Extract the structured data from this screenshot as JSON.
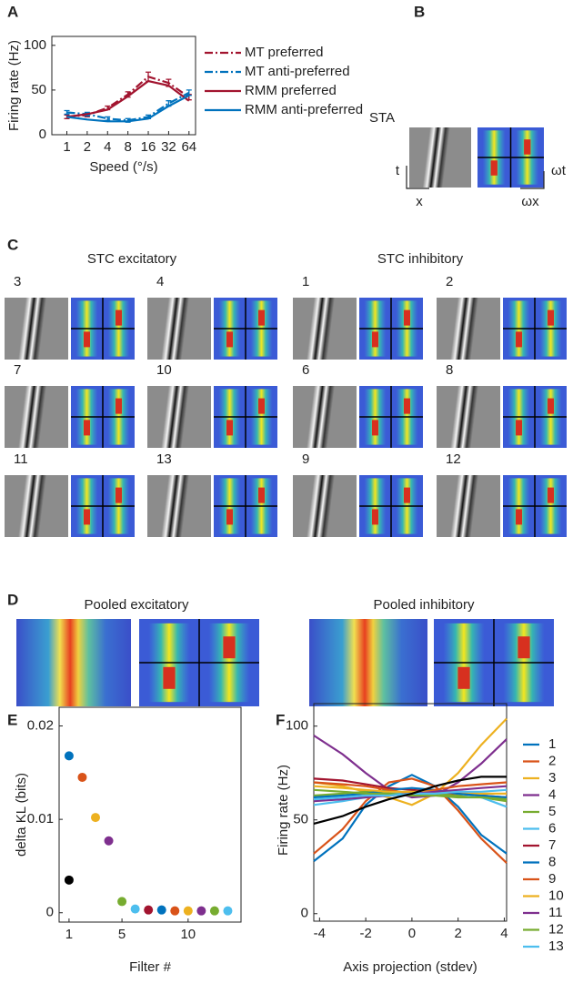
{
  "panel_labels": [
    "A",
    "B",
    "C",
    "D",
    "E",
    "F"
  ],
  "sta": {
    "title": "STA",
    "t": "t",
    "x": "x",
    "wt": "ωt",
    "wx": "ωx"
  },
  "stc": {
    "excitatory": "STC excitatory",
    "inhibitory": "STC inhibitory",
    "filters": [
      [
        "3",
        "4",
        "1",
        "2"
      ],
      [
        "7",
        "10",
        "6",
        "8"
      ],
      [
        "11",
        "13",
        "9",
        "12"
      ]
    ]
  },
  "pooled": {
    "excitatory": "Pooled excitatory",
    "inhibitory": "Pooled inhibitory"
  },
  "chart_data": [
    {
      "type": "line",
      "x": [
        1,
        2,
        4,
        8,
        16,
        32,
        64
      ],
      "log_x": true,
      "xlim": [
        0.6,
        80
      ],
      "xticks": [
        1,
        2,
        4,
        8,
        16,
        32,
        64
      ],
      "ylim": [
        0,
        110
      ],
      "yticks": [
        0,
        50,
        100
      ],
      "xlabel": "Speed (°/s)",
      "ylabel": "Firing rate (Hz)",
      "legend": "outside right",
      "series": [
        {
          "name": "MT preferred",
          "color": "#a2142f",
          "dash": "dashdot",
          "values": [
            20,
            22,
            30,
            45,
            65,
            58,
            42
          ],
          "errors": [
            2,
            2,
            2,
            3,
            5,
            4,
            3
          ]
        },
        {
          "name": "MT anti-preferred",
          "color": "#0072bd",
          "dash": "dashdot",
          "values": [
            25,
            23,
            18,
            16,
            20,
            35,
            47
          ],
          "errors": [
            2,
            2,
            2,
            2,
            2,
            3,
            3
          ]
        },
        {
          "name": "RMM preferred",
          "color": "#a2142f",
          "dash": "solid",
          "values": [
            20,
            23,
            28,
            43,
            60,
            55,
            38
          ]
        },
        {
          "name": "RMM anti-preferred",
          "color": "#0072bd",
          "dash": "solid",
          "values": [
            20,
            17,
            15,
            15,
            18,
            32,
            44
          ]
        }
      ]
    },
    {
      "type": "scatter",
      "xlim": [
        0.25,
        14
      ],
      "ylim": [
        -0.001,
        0.022
      ],
      "xticks": [
        1,
        5,
        10
      ],
      "yticks": [
        0,
        0.01,
        0.02
      ],
      "xlabel": "Filter #",
      "ylabel": "delta KL (bits)",
      "series": [
        {
          "color": "#000000",
          "x": [
            1
          ],
          "values": [
            0.0035
          ]
        },
        {
          "colors": [
            "#0072bd",
            "#d95319",
            "#edb120",
            "#7e2f8e",
            "#77ac30",
            "#4dbeee",
            "#a2142f",
            "#0072bd",
            "#d95319",
            "#edb120",
            "#7e2f8e",
            "#77ac30",
            "#4dbeee"
          ],
          "x": [
            1,
            2,
            3,
            4,
            5,
            6,
            7,
            8,
            9,
            10,
            11,
            12,
            13
          ],
          "values": [
            0.0168,
            0.0145,
            0.0102,
            0.0077,
            0.0012,
            0.0004,
            0.0003,
            0.0003,
            0.0002,
            0.0002,
            0.0002,
            0.0002,
            0.0002
          ]
        }
      ]
    },
    {
      "type": "line",
      "x": [
        -4.25,
        -3,
        -2,
        -1,
        0,
        1,
        2,
        3,
        4.1
      ],
      "xlim": [
        -4.25,
        4.1
      ],
      "xticks": [
        -4,
        -2,
        0,
        2,
        4
      ],
      "ylim": [
        -4,
        112
      ],
      "yticks": [
        0,
        50,
        100
      ],
      "xlabel": "Axis projection (stdev)",
      "ylabel": "Firing rate (Hz)",
      "legend": "outside right",
      "series": [
        {
          "name": "1",
          "color": "#0072bd",
          "values": [
            28,
            40,
            58,
            68,
            74,
            68,
            57,
            42,
            32
          ]
        },
        {
          "name": "2",
          "color": "#d95319",
          "values": [
            32,
            45,
            60,
            70,
            72,
            68,
            55,
            40,
            27
          ]
        },
        {
          "name": "3",
          "color": "#edb120",
          "values": [
            70,
            68,
            65,
            62,
            58,
            64,
            75,
            90,
            104
          ]
        },
        {
          "name": "4",
          "color": "#7e2f8e",
          "values": [
            95,
            85,
            75,
            66,
            62,
            63,
            70,
            80,
            93
          ]
        },
        {
          "name": "5",
          "color": "#77ac30",
          "values": [
            63,
            64,
            65,
            65,
            64,
            64,
            63,
            62,
            60
          ]
        },
        {
          "name": "6",
          "color": "#4dbeee",
          "values": [
            58,
            60,
            62,
            64,
            65,
            65,
            64,
            62,
            57
          ]
        },
        {
          "name": "7",
          "color": "#a2142f",
          "values": [
            72,
            71,
            69,
            67,
            66,
            65,
            64,
            63,
            62
          ]
        },
        {
          "name": "8",
          "color": "#0072bd",
          "values": [
            62,
            63,
            64,
            66,
            67,
            66,
            64,
            63,
            62
          ]
        },
        {
          "name": "9",
          "color": "#d95319",
          "values": [
            70,
            69,
            68,
            66,
            64,
            66,
            68,
            69,
            70
          ]
        },
        {
          "name": "10",
          "color": "#edb120",
          "values": [
            68,
            67,
            66,
            65,
            65,
            65,
            65,
            64,
            64
          ]
        },
        {
          "name": "11",
          "color": "#7e2f8e",
          "values": [
            60,
            61,
            62,
            63,
            64,
            65,
            66,
            67,
            68
          ]
        },
        {
          "name": "12",
          "color": "#77ac30",
          "values": [
            66,
            65,
            64,
            64,
            63,
            63,
            62,
            62,
            61
          ]
        },
        {
          "name": "13",
          "color": "#4dbeee",
          "values": [
            61,
            62,
            63,
            63,
            64,
            64,
            65,
            65,
            66
          ]
        },
        {
          "color": "#000000",
          "values": [
            48,
            52,
            57,
            61,
            64,
            68,
            71,
            73,
            73
          ]
        }
      ]
    }
  ]
}
